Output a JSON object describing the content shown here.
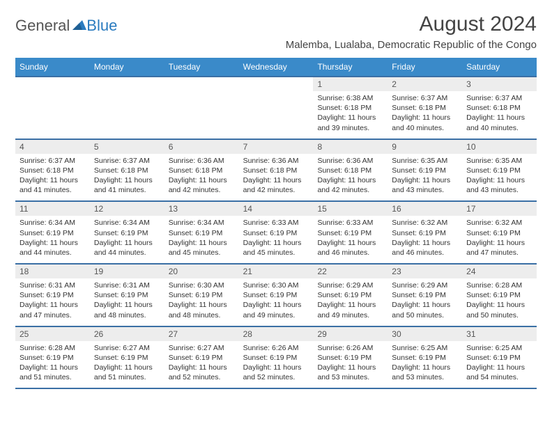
{
  "logo": {
    "text1": "General",
    "text2": "Blue"
  },
  "title": "August 2024",
  "location": "Malemba, Lualaba, Democratic Republic of the Congo",
  "colors": {
    "header_bg": "#3a8ac9",
    "week_border": "#3a6fa5",
    "daynum_bg": "#ededed",
    "logo_blue": "#2a7bbf",
    "text_dark": "#444"
  },
  "weekdays": [
    "Sunday",
    "Monday",
    "Tuesday",
    "Wednesday",
    "Thursday",
    "Friday",
    "Saturday"
  ],
  "weeks": [
    [
      {
        "day": "",
        "sunrise": "",
        "sunset": "",
        "daylight": ""
      },
      {
        "day": "",
        "sunrise": "",
        "sunset": "",
        "daylight": ""
      },
      {
        "day": "",
        "sunrise": "",
        "sunset": "",
        "daylight": ""
      },
      {
        "day": "",
        "sunrise": "",
        "sunset": "",
        "daylight": ""
      },
      {
        "day": "1",
        "sunrise": "Sunrise: 6:38 AM",
        "sunset": "Sunset: 6:18 PM",
        "daylight": "Daylight: 11 hours and 39 minutes."
      },
      {
        "day": "2",
        "sunrise": "Sunrise: 6:37 AM",
        "sunset": "Sunset: 6:18 PM",
        "daylight": "Daylight: 11 hours and 40 minutes."
      },
      {
        "day": "3",
        "sunrise": "Sunrise: 6:37 AM",
        "sunset": "Sunset: 6:18 PM",
        "daylight": "Daylight: 11 hours and 40 minutes."
      }
    ],
    [
      {
        "day": "4",
        "sunrise": "Sunrise: 6:37 AM",
        "sunset": "Sunset: 6:18 PM",
        "daylight": "Daylight: 11 hours and 41 minutes."
      },
      {
        "day": "5",
        "sunrise": "Sunrise: 6:37 AM",
        "sunset": "Sunset: 6:18 PM",
        "daylight": "Daylight: 11 hours and 41 minutes."
      },
      {
        "day": "6",
        "sunrise": "Sunrise: 6:36 AM",
        "sunset": "Sunset: 6:18 PM",
        "daylight": "Daylight: 11 hours and 42 minutes."
      },
      {
        "day": "7",
        "sunrise": "Sunrise: 6:36 AM",
        "sunset": "Sunset: 6:18 PM",
        "daylight": "Daylight: 11 hours and 42 minutes."
      },
      {
        "day": "8",
        "sunrise": "Sunrise: 6:36 AM",
        "sunset": "Sunset: 6:18 PM",
        "daylight": "Daylight: 11 hours and 42 minutes."
      },
      {
        "day": "9",
        "sunrise": "Sunrise: 6:35 AM",
        "sunset": "Sunset: 6:19 PM",
        "daylight": "Daylight: 11 hours and 43 minutes."
      },
      {
        "day": "10",
        "sunrise": "Sunrise: 6:35 AM",
        "sunset": "Sunset: 6:19 PM",
        "daylight": "Daylight: 11 hours and 43 minutes."
      }
    ],
    [
      {
        "day": "11",
        "sunrise": "Sunrise: 6:34 AM",
        "sunset": "Sunset: 6:19 PM",
        "daylight": "Daylight: 11 hours and 44 minutes."
      },
      {
        "day": "12",
        "sunrise": "Sunrise: 6:34 AM",
        "sunset": "Sunset: 6:19 PM",
        "daylight": "Daylight: 11 hours and 44 minutes."
      },
      {
        "day": "13",
        "sunrise": "Sunrise: 6:34 AM",
        "sunset": "Sunset: 6:19 PM",
        "daylight": "Daylight: 11 hours and 45 minutes."
      },
      {
        "day": "14",
        "sunrise": "Sunrise: 6:33 AM",
        "sunset": "Sunset: 6:19 PM",
        "daylight": "Daylight: 11 hours and 45 minutes."
      },
      {
        "day": "15",
        "sunrise": "Sunrise: 6:33 AM",
        "sunset": "Sunset: 6:19 PM",
        "daylight": "Daylight: 11 hours and 46 minutes."
      },
      {
        "day": "16",
        "sunrise": "Sunrise: 6:32 AM",
        "sunset": "Sunset: 6:19 PM",
        "daylight": "Daylight: 11 hours and 46 minutes."
      },
      {
        "day": "17",
        "sunrise": "Sunrise: 6:32 AM",
        "sunset": "Sunset: 6:19 PM",
        "daylight": "Daylight: 11 hours and 47 minutes."
      }
    ],
    [
      {
        "day": "18",
        "sunrise": "Sunrise: 6:31 AM",
        "sunset": "Sunset: 6:19 PM",
        "daylight": "Daylight: 11 hours and 47 minutes."
      },
      {
        "day": "19",
        "sunrise": "Sunrise: 6:31 AM",
        "sunset": "Sunset: 6:19 PM",
        "daylight": "Daylight: 11 hours and 48 minutes."
      },
      {
        "day": "20",
        "sunrise": "Sunrise: 6:30 AM",
        "sunset": "Sunset: 6:19 PM",
        "daylight": "Daylight: 11 hours and 48 minutes."
      },
      {
        "day": "21",
        "sunrise": "Sunrise: 6:30 AM",
        "sunset": "Sunset: 6:19 PM",
        "daylight": "Daylight: 11 hours and 49 minutes."
      },
      {
        "day": "22",
        "sunrise": "Sunrise: 6:29 AM",
        "sunset": "Sunset: 6:19 PM",
        "daylight": "Daylight: 11 hours and 49 minutes."
      },
      {
        "day": "23",
        "sunrise": "Sunrise: 6:29 AM",
        "sunset": "Sunset: 6:19 PM",
        "daylight": "Daylight: 11 hours and 50 minutes."
      },
      {
        "day": "24",
        "sunrise": "Sunrise: 6:28 AM",
        "sunset": "Sunset: 6:19 PM",
        "daylight": "Daylight: 11 hours and 50 minutes."
      }
    ],
    [
      {
        "day": "25",
        "sunrise": "Sunrise: 6:28 AM",
        "sunset": "Sunset: 6:19 PM",
        "daylight": "Daylight: 11 hours and 51 minutes."
      },
      {
        "day": "26",
        "sunrise": "Sunrise: 6:27 AM",
        "sunset": "Sunset: 6:19 PM",
        "daylight": "Daylight: 11 hours and 51 minutes."
      },
      {
        "day": "27",
        "sunrise": "Sunrise: 6:27 AM",
        "sunset": "Sunset: 6:19 PM",
        "daylight": "Daylight: 11 hours and 52 minutes."
      },
      {
        "day": "28",
        "sunrise": "Sunrise: 6:26 AM",
        "sunset": "Sunset: 6:19 PM",
        "daylight": "Daylight: 11 hours and 52 minutes."
      },
      {
        "day": "29",
        "sunrise": "Sunrise: 6:26 AM",
        "sunset": "Sunset: 6:19 PM",
        "daylight": "Daylight: 11 hours and 53 minutes."
      },
      {
        "day": "30",
        "sunrise": "Sunrise: 6:25 AM",
        "sunset": "Sunset: 6:19 PM",
        "daylight": "Daylight: 11 hours and 53 minutes."
      },
      {
        "day": "31",
        "sunrise": "Sunrise: 6:25 AM",
        "sunset": "Sunset: 6:19 PM",
        "daylight": "Daylight: 11 hours and 54 minutes."
      }
    ]
  ]
}
